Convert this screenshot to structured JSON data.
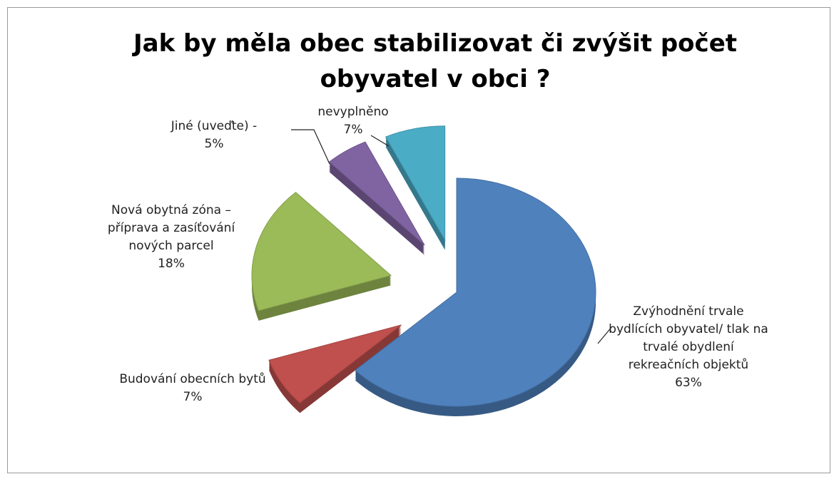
{
  "chart_data": {
    "type": "pie",
    "title": "Jak by měla obec stabilizovat či zvýšit počet obyvatel v obci ?",
    "categories": [
      "Zvýhodnění trvale bydlících obyvatel/ tlak na trvalé obydlení rekreačních objektů",
      "Budování obecních bytů",
      "Nová obytná zóna – příprava a zasíťování nových parcel",
      "Jiné (uveďte) -",
      "nevyplněno"
    ],
    "values": [
      63,
      7,
      18,
      5,
      7
    ],
    "value_labels": [
      "63%",
      "7%",
      "18%",
      "5%",
      "7%"
    ],
    "colors": [
      "#4f81bd",
      "#c0504d",
      "#9bbb59",
      "#8064a2",
      "#4bacc6"
    ]
  }
}
